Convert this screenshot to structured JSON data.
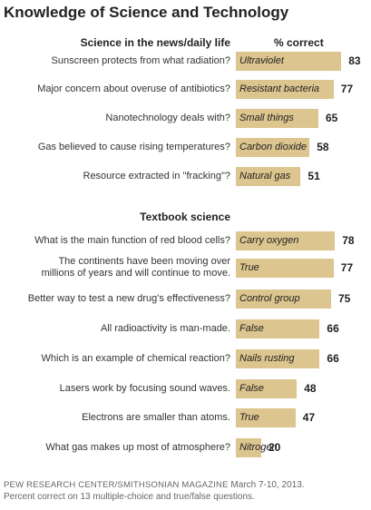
{
  "title": "Knowledge of Science and Technology",
  "column_header": "% correct",
  "footer": {
    "source": "PEW RESEARCH CENTER/SMITHSONIAN MAGAZINE",
    "date": "March 7-10, 2013.",
    "note": "Percent correct on 13 multiple-choice and true/false questions."
  },
  "colors": {
    "bar": "#dcc58e"
  },
  "chart_data": {
    "type": "bar",
    "orientation": "horizontal",
    "title": "Knowledge of Science and Technology",
    "value_label": "% correct",
    "xlim": [
      0,
      100
    ],
    "grid": false,
    "sections": [
      {
        "title": "Science in the news/daily life",
        "items": [
          {
            "question": "Sunscreen protects from what radiation?",
            "answer": "Ultraviolet",
            "value": 83
          },
          {
            "question": "Major concern about overuse of antibiotics?",
            "answer": "Resistant bacteria",
            "value": 77
          },
          {
            "question": "Nanotechnology deals with?",
            "answer": "Small things",
            "value": 65
          },
          {
            "question": "Gas believed to cause rising temperatures?",
            "answer": "Carbon dioxide",
            "value": 58
          },
          {
            "question": "Resource extracted in \"fracking\"?",
            "answer": "Natural gas",
            "value": 51
          }
        ]
      },
      {
        "title": "Textbook science",
        "items": [
          {
            "question": "What is the main function of red blood cells?",
            "answer": "Carry oxygen",
            "value": 78
          },
          {
            "question": "The continents have been moving over\nmillions of years and will continue to move.",
            "answer": "True",
            "value": 77
          },
          {
            "question": "Better way to test a new drug's effectiveness?",
            "answer": "Control group",
            "value": 75
          },
          {
            "question": "All radioactivity is man-made.",
            "answer": "False",
            "value": 66
          },
          {
            "question": "Which is an example of chemical reaction?",
            "answer": "Nails rusting",
            "value": 66
          },
          {
            "question": "Lasers work by focusing sound waves.",
            "answer": "False",
            "value": 48
          },
          {
            "question": "Electrons are smaller than atoms.",
            "answer": "True",
            "value": 47
          },
          {
            "question": "What gas makes up most of atmosphere?",
            "answer": "Nitrogen",
            "value": 20
          }
        ]
      }
    ]
  }
}
